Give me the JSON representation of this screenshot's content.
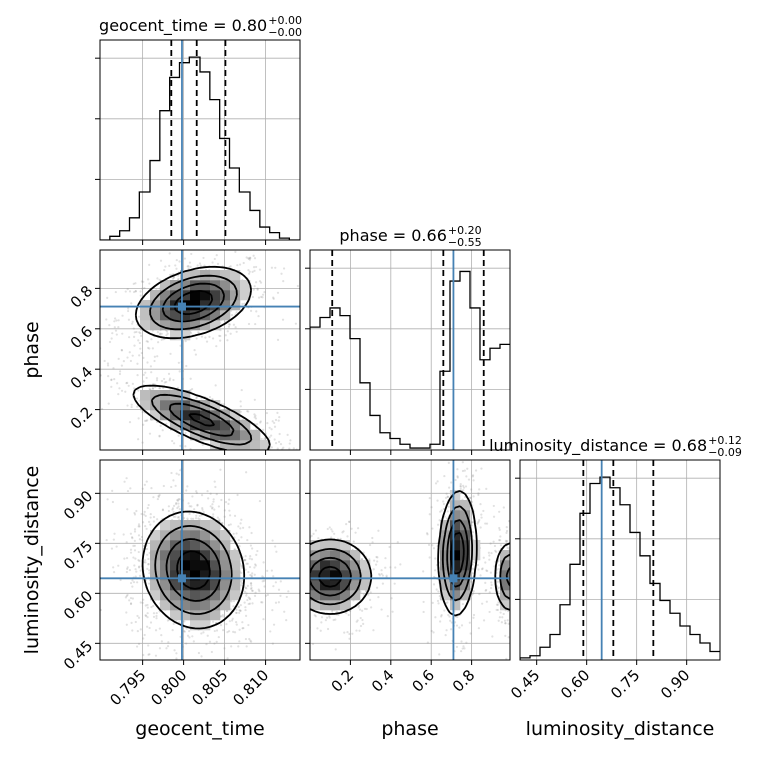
{
  "chart_data": {
    "type": "corner",
    "parameters": [
      "geocent_time",
      "phase",
      "luminosity_distance"
    ],
    "axis_labels": {
      "geocent_time": "geocent_time",
      "phase": "phase",
      "luminosity_distance": "luminosity_distance"
    },
    "ranges": {
      "geocent_time": [
        0.7898,
        0.8142
      ],
      "phase": [
        0.0,
        0.99
      ],
      "luminosity_distance": [
        0.4,
        1.0
      ]
    },
    "ticks": {
      "geocent_time": [
        {
          "value": 0.795,
          "label": "0.795"
        },
        {
          "value": 0.8,
          "label": "0.800"
        },
        {
          "value": 0.805,
          "label": "0.805"
        },
        {
          "value": 0.81,
          "label": "0.810"
        }
      ],
      "phase": [
        {
          "value": 0.2,
          "label": "0.2"
        },
        {
          "value": 0.4,
          "label": "0.4"
        },
        {
          "value": 0.6,
          "label": "0.6"
        },
        {
          "value": 0.8,
          "label": "0.8"
        }
      ],
      "luminosity_distance": [
        {
          "value": 0.45,
          "label": "0.45"
        },
        {
          "value": 0.6,
          "label": "0.60"
        },
        {
          "value": 0.75,
          "label": "0.75"
        },
        {
          "value": 0.9,
          "label": "0.90"
        }
      ]
    },
    "truths": {
      "geocent_time": 0.7998,
      "phase": 0.71,
      "luminosity_distance": 0.645
    },
    "titles": {
      "geocent_time": {
        "name": "geocent_time",
        "median": "0.80",
        "plus": "+0.00",
        "minus": "−0.00"
      },
      "phase": {
        "name": "phase",
        "median": "0.66",
        "plus": "+0.20",
        "minus": "−0.55"
      },
      "luminosity_distance": {
        "name": "luminosity_distance",
        "median": "0.68",
        "plus": "+0.12",
        "minus": "−0.09"
      }
    },
    "quantiles": {
      "geocent_time": [
        0.7985,
        0.8016,
        0.8051
      ],
      "phase": [
        0.11,
        0.66,
        0.86
      ],
      "luminosity_distance": [
        0.59,
        0.68,
        0.8
      ]
    },
    "histograms": {
      "geocent_time": {
        "edges": [
          0.7898,
          0.791,
          0.7922,
          0.7934,
          0.7946,
          0.7959,
          0.7971,
          0.7983,
          0.7995,
          0.8007,
          0.802,
          0.8032,
          0.8044,
          0.8056,
          0.8068,
          0.8081,
          0.8093,
          0.8105,
          0.8117,
          0.8129,
          0.8142
        ],
        "counts": [
          0.0,
          0.02,
          0.05,
          0.12,
          0.26,
          0.43,
          0.7,
          0.88,
          0.96,
          0.99,
          0.91,
          0.76,
          0.55,
          0.39,
          0.26,
          0.16,
          0.07,
          0.04,
          0.01,
          0.0
        ]
      },
      "phase": {
        "edges": [
          0.0,
          0.0495,
          0.099,
          0.1485,
          0.198,
          0.2475,
          0.297,
          0.3465,
          0.396,
          0.4455,
          0.495,
          0.5445,
          0.594,
          0.6435,
          0.693,
          0.7425,
          0.792,
          0.8415,
          0.891,
          0.9405,
          0.99
        ],
        "counts": [
          0.64,
          0.69,
          0.74,
          0.7,
          0.58,
          0.35,
          0.18,
          0.09,
          0.06,
          0.03,
          0.01,
          0.01,
          0.03,
          0.41,
          0.88,
          0.93,
          0.74,
          0.47,
          0.53,
          0.55
        ],
        "ymax": 1.0
      },
      "luminosity_distance": {
        "edges": [
          0.4,
          0.43,
          0.46,
          0.49,
          0.52,
          0.55,
          0.58,
          0.61,
          0.64,
          0.67,
          0.7,
          0.73,
          0.76,
          0.79,
          0.82,
          0.85,
          0.88,
          0.91,
          0.94,
          0.97,
          1.0
        ],
        "counts": [
          0.01,
          0.02,
          0.06,
          0.12,
          0.26,
          0.45,
          0.69,
          0.83,
          0.86,
          0.81,
          0.73,
          0.6,
          0.49,
          0.36,
          0.28,
          0.22,
          0.16,
          0.12,
          0.08,
          0.04
        ]
      }
    },
    "panels_2d": [
      {
        "x": "geocent_time",
        "y": "phase",
        "blobs": [
          {
            "cx": 0.8012,
            "cy": 0.73,
            "sx": 0.0034,
            "sy": 0.085,
            "rho": 0.35,
            "weight": 1.0,
            "peak_x": 0.7999,
            "peak_y": 0.7
          },
          {
            "cx": 0.8022,
            "cy": 0.15,
            "sx": 0.0042,
            "sy": 0.085,
            "rho": -0.75,
            "weight": 0.85
          }
        ]
      },
      {
        "x": "geocent_time",
        "y": "luminosity_distance",
        "blobs": [
          {
            "cx": 0.8012,
            "cy": 0.67,
            "sx": 0.003,
            "sy": 0.085,
            "rho": -0.1,
            "weight": 1.0,
            "peak_x": 0.8012,
            "peak_y": 0.645
          }
        ]
      },
      {
        "x": "phase",
        "y": "luminosity_distance",
        "blobs": [
          {
            "cx": 0.73,
            "cy": 0.72,
            "sx": 0.045,
            "sy": 0.09,
            "rho": 0.1,
            "weight": 1.0
          },
          {
            "cx": 0.1,
            "cy": 0.65,
            "sx": 0.1,
            "sy": 0.055,
            "rho": 0.0,
            "weight": 0.9
          },
          {
            "cx": 0.99,
            "cy": 0.65,
            "sx": 0.04,
            "sy": 0.055,
            "rho": 0.0,
            "weight": 0.6
          }
        ]
      }
    ]
  }
}
